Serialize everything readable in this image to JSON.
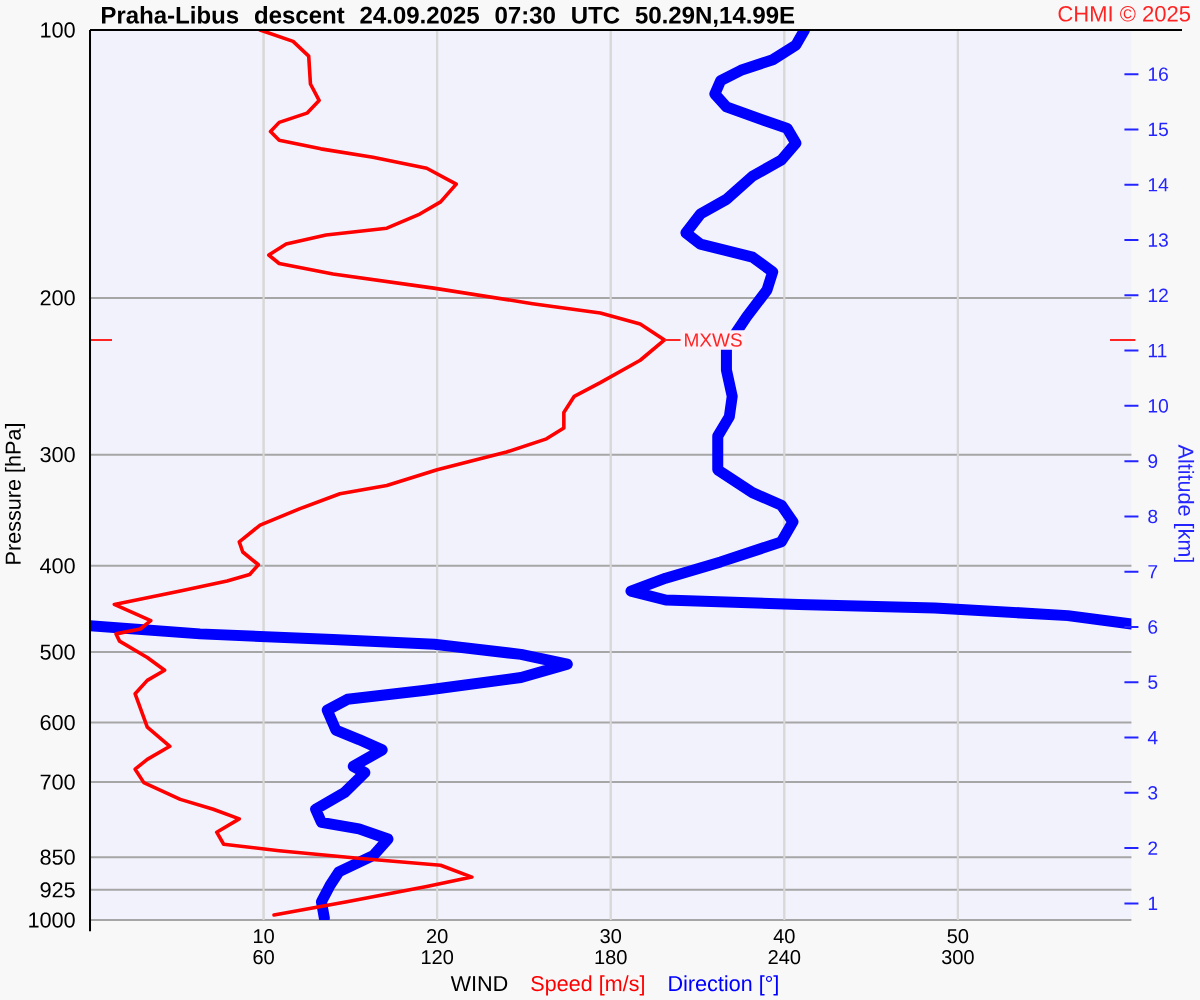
{
  "chart_data": {
    "type": "line",
    "title": "Praha-Libus descent 24.09.2025 07:30 UTC 50.29N,14.99E",
    "xlabel": "WIND",
    "ylabel": "Pressure [hPa]",
    "y2label": "Altitude [km]",
    "annotations": [
      "CHMI © 2025",
      {
        "text": "MXWS",
        "x": 33.1,
        "y": 223
      }
    ],
    "xlim": [
      0,
      60
    ],
    "xticks": [
      10,
      20,
      30,
      40,
      50
    ],
    "x2lim": [
      0,
      360
    ],
    "x2ticks": [
      60,
      120,
      180,
      240,
      300
    ],
    "ylim": [
      1000,
      100
    ],
    "yticks": [
      100,
      200,
      300,
      400,
      500,
      600,
      700,
      850,
      925,
      1000
    ],
    "y2lim": [
      0.7,
      16.8
    ],
    "y2ticks": [
      1,
      2,
      3,
      4,
      5,
      6,
      7,
      8,
      9,
      10,
      11,
      12,
      13,
      14,
      15,
      16
    ],
    "log": true,
    "grid": true,
    "legend": "bottom",
    "series": [
      {
        "name": "Speed [m/s]",
        "color": "#ff0000",
        "x": [
          9.8,
          11.7,
          12.6,
          12.7,
          13.2,
          12.5,
          10.9,
          10.4,
          10.9,
          13.3,
          16.3,
          19.4,
          21.1,
          20.2,
          19.0,
          17.1,
          13.6,
          11.3,
          10.3,
          10.9,
          14.0,
          19.8,
          25.5,
          29.4,
          31.7,
          33.1,
          31.7,
          29.4,
          27.9,
          27.3,
          27.3,
          26.3,
          24.0,
          20.0,
          17.1,
          14.4,
          12.1,
          9.8,
          8.6,
          8.8,
          9.7,
          9.2,
          7.9,
          5.2,
          1.4,
          3.5,
          2.9,
          1.5,
          1.7,
          3.3,
          4.3,
          3.3,
          2.6,
          3.3,
          4.6,
          3.3,
          2.6,
          3.1,
          5.2,
          7.1,
          8.6,
          7.3,
          7.7,
          10.9,
          15.6,
          20.2,
          22.0,
          19.4,
          14.8,
          10.6
        ],
        "values": [
          100,
          103,
          107,
          115,
          120,
          124,
          127,
          130,
          133,
          136,
          139,
          143,
          149,
          156,
          161,
          167,
          170,
          174,
          179,
          183,
          188,
          195,
          203,
          208,
          214,
          223,
          235,
          249,
          258,
          269,
          280,
          288,
          298,
          312,
          325,
          332,
          345,
          360,
          376,
          386,
          399,
          409,
          416,
          427,
          442,
          461,
          471,
          477,
          486,
          507,
          524,
          538,
          557,
          607,
          638,
          660,
          677,
          701,
          732,
          751,
          770,
          797,
          822,
          836,
          853,
          868,
          895,
          917,
          954,
          987
        ]
      },
      {
        "name": "Direction [°]",
        "color": "#0000ff",
        "axis": "x2",
        "x": [
          247,
          244,
          236,
          225,
          218,
          216,
          220,
          232,
          241,
          244,
          239,
          229,
          220,
          211,
          206,
          211,
          229,
          236,
          234,
          227,
          220,
          220,
          222,
          221,
          217,
          217,
          229,
          239,
          243,
          239,
          218,
          199,
          187,
          199,
          245,
          292,
          338,
          360,
          null,
          0,
          38,
          84,
          119,
          149,
          165,
          149,
          116,
          89,
          82,
          85,
          93,
          101,
          91,
          95,
          88,
          78,
          80,
          93,
          103,
          98,
          86,
          83,
          80,
          81
        ],
        "values": [
          100,
          104,
          108,
          111,
          114,
          118,
          122,
          126,
          129,
          134,
          140,
          146,
          155,
          161,
          169,
          174,
          180,
          187,
          196,
          210,
          227,
          241,
          258,
          272,
          286,
          312,
          331,
          342,
          357,
          376,
          396,
          413,
          427,
          437,
          442,
          446,
          455,
          465,
          null,
          467,
          477,
          484,
          490,
          503,
          516,
          534,
          552,
          565,
          581,
          612,
          627,
          644,
          672,
          683,
          719,
          751,
          777,
          790,
          811,
          846,
          883,
          914,
          954,
          995
        ]
      }
    ]
  }
}
